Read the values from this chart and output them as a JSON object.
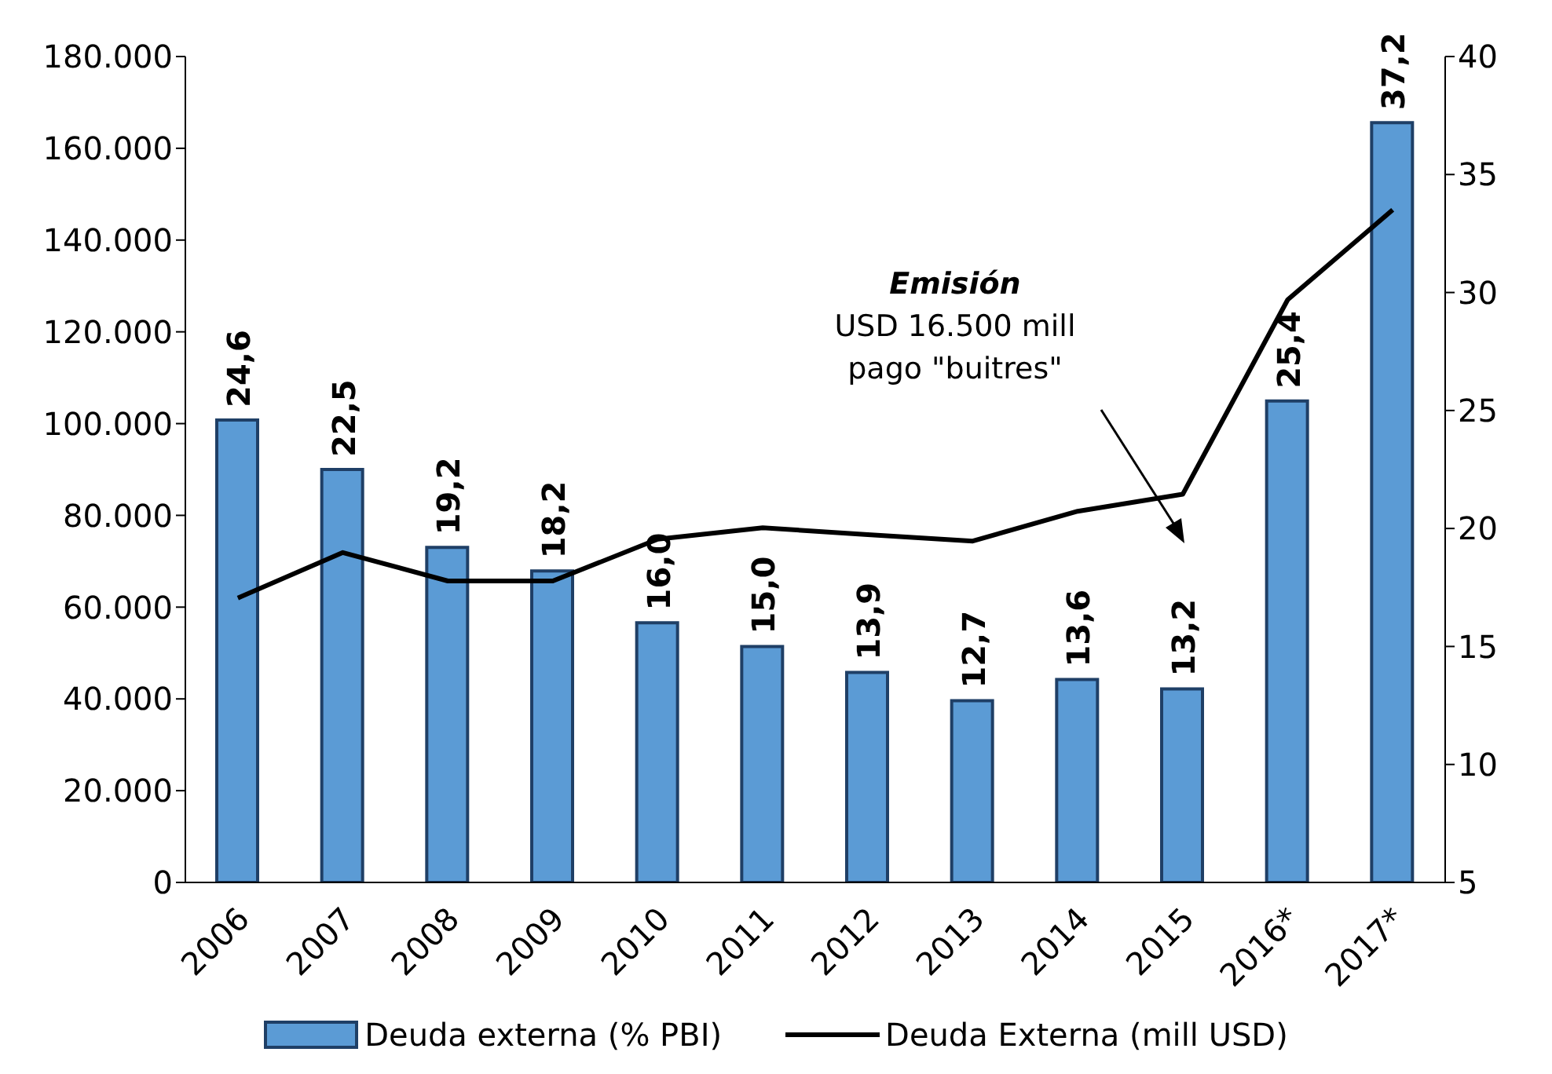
{
  "chart_data": {
    "type": "bar",
    "categories": [
      "2006",
      "2007",
      "2008",
      "2009",
      "2010",
      "2011",
      "2012",
      "2013",
      "2014",
      "2015",
      "2016*",
      "2017*"
    ],
    "series": [
      {
        "name": "Deuda externa (% PBI)",
        "axis": "y2",
        "color": "#5b9bd5",
        "values": [
          24.6,
          22.5,
          19.2,
          18.2,
          16.0,
          15.0,
          13.9,
          12.7,
          13.6,
          13.2,
          25.4,
          37.2
        ],
        "value_labels": [
          "24,6",
          "22,5",
          "19,2",
          "18,2",
          "16,0",
          "15,0",
          "13,9",
          "12,7",
          "13,6",
          "13,2",
          "25,4",
          "37,2"
        ]
      },
      {
        "name": "Deuda Externa (mill USD)",
        "type": "line",
        "color": "#000000",
        "values": [
          62000,
          71900,
          65700,
          65700,
          74800,
          77300,
          75800,
          74400,
          80900,
          84600,
          127000,
          146600
        ]
      }
    ],
    "ylim": [
      0,
      180000
    ],
    "yticks": [
      {
        "value": 0,
        "label": "0"
      },
      {
        "value": 20000,
        "label": "20.000"
      },
      {
        "value": 40000,
        "label": "40.000"
      },
      {
        "value": 60000,
        "label": "60.000"
      },
      {
        "value": 80000,
        "label": "80.000"
      },
      {
        "value": 100000,
        "label": "100.000"
      },
      {
        "value": 120000,
        "label": "120.000"
      },
      {
        "value": 140000,
        "label": "140.000"
      },
      {
        "value": 160000,
        "label": "160.000"
      },
      {
        "value": 180000,
        "label": "180.000"
      }
    ],
    "y2lim": [
      5,
      40
    ],
    "y2ticks": [
      5,
      10,
      15,
      20,
      25,
      30,
      35,
      40
    ],
    "annotations": [
      "Emisión",
      "USD 16.500 mill",
      "pago \"buitres\""
    ],
    "legend": "bottom",
    "grid": false,
    "marker": "none",
    "line_style": "solid"
  }
}
